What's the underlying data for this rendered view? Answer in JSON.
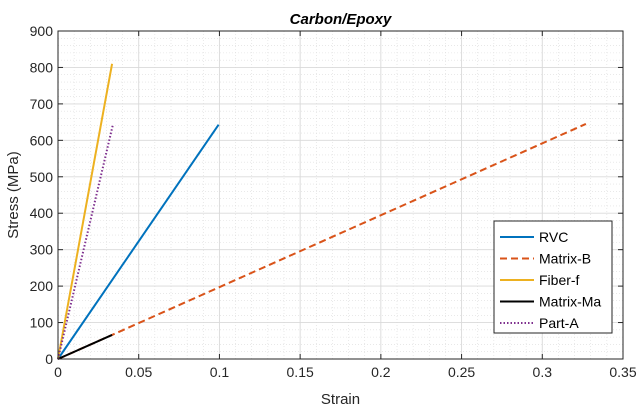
{
  "chart_data": {
    "type": "line",
    "title": "Carbon/Epoxy",
    "xlabel": "Strain",
    "ylabel": "Stress (MPa)",
    "xlim": [
      0,
      0.35
    ],
    "ylim": [
      0,
      900
    ],
    "xticks": [
      0,
      0.05,
      0.1,
      0.15,
      0.2,
      0.25,
      0.3,
      0.35
    ],
    "xtick_labels": [
      "0",
      "0.05",
      "0.1",
      "0.15",
      "0.2",
      "0.25",
      "0.3",
      "0.35"
    ],
    "yticks": [
      0,
      100,
      200,
      300,
      400,
      500,
      600,
      700,
      800,
      900
    ],
    "ytick_labels": [
      "0",
      "100",
      "200",
      "300",
      "400",
      "500",
      "600",
      "700",
      "800",
      "900"
    ],
    "grid": true,
    "minor_grid": true,
    "legend_position": "right",
    "series": [
      {
        "name": "RVC",
        "color": "#0072BD",
        "style": "solid",
        "x": [
          0,
          0.0995
        ],
        "y": [
          0,
          643
        ]
      },
      {
        "name": "Matrix-B",
        "color": "#D95319",
        "style": "dashed",
        "x": [
          0,
          0.327
        ],
        "y": [
          0,
          645
        ]
      },
      {
        "name": "Fiber-f",
        "color": "#EDB120",
        "style": "solid",
        "x": [
          0,
          0.0335
        ],
        "y": [
          0,
          810
        ]
      },
      {
        "name": "Matrix-Ma",
        "color": "#000000",
        "style": "solid",
        "x": [
          0,
          0.0335
        ],
        "y": [
          0,
          66
        ]
      },
      {
        "name": "Part-A",
        "color": "#7E2F8E",
        "style": "dotted",
        "x": [
          0,
          0.034
        ],
        "y": [
          0,
          643
        ]
      }
    ]
  }
}
